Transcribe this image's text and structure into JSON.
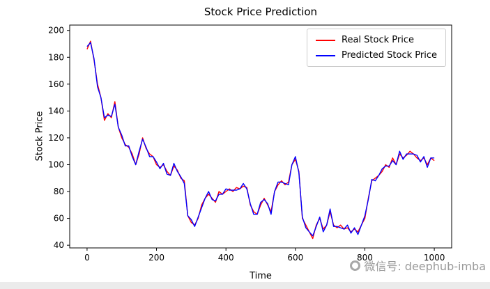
{
  "chart_data": {
    "type": "line",
    "title": "Stock Price Prediction",
    "xlabel": "Time",
    "ylabel": "Stock Price",
    "xlim": [
      -50,
      1050
    ],
    "ylim": [
      38,
      204
    ],
    "xticks": [
      0,
      200,
      400,
      600,
      800,
      1000
    ],
    "yticks": [
      40,
      60,
      80,
      100,
      120,
      140,
      160,
      180,
      200
    ],
    "grid": false,
    "legend_position": "upper right",
    "x": [
      0,
      10,
      20,
      30,
      40,
      50,
      60,
      70,
      80,
      90,
      100,
      110,
      120,
      130,
      140,
      150,
      160,
      170,
      180,
      190,
      200,
      210,
      220,
      230,
      240,
      250,
      260,
      270,
      280,
      290,
      300,
      310,
      320,
      330,
      340,
      350,
      360,
      370,
      380,
      390,
      400,
      410,
      420,
      430,
      440,
      450,
      460,
      470,
      480,
      490,
      500,
      510,
      520,
      530,
      540,
      550,
      560,
      570,
      580,
      590,
      600,
      610,
      620,
      630,
      640,
      650,
      660,
      670,
      680,
      690,
      700,
      710,
      720,
      730,
      740,
      750,
      760,
      770,
      780,
      790,
      800,
      810,
      820,
      830,
      840,
      850,
      860,
      870,
      880,
      890,
      900,
      910,
      920,
      930,
      940,
      950,
      960,
      970,
      980,
      990,
      1000
    ],
    "series": [
      {
        "name": "Real  Stock Price",
        "color": "#ff0000",
        "values": [
          186,
          192,
          178,
          160,
          150,
          133,
          138,
          135,
          147,
          128,
          120,
          115,
          113,
          108,
          100,
          108,
          120,
          112,
          108,
          106,
          100,
          98,
          100,
          95,
          92,
          99,
          96,
          90,
          88,
          62,
          57,
          55,
          60,
          70,
          75,
          78,
          75,
          72,
          80,
          78,
          80,
          82,
          80,
          83,
          82,
          84,
          83,
          70,
          65,
          63,
          70,
          75,
          70,
          65,
          80,
          85,
          88,
          85,
          87,
          100,
          104,
          95,
          60,
          55,
          50,
          45,
          55,
          60,
          52,
          55,
          65,
          55,
          53,
          55,
          52,
          53,
          50,
          52,
          50,
          55,
          60,
          75,
          88,
          90,
          92,
          95,
          100,
          98,
          105,
          100,
          108,
          105,
          107,
          110,
          108,
          105,
          103,
          105,
          100,
          105,
          103
        ]
      },
      {
        "name": "Predicted  Stock Price",
        "color": "#0000ff",
        "values": [
          188,
          191,
          179,
          158,
          150,
          135,
          137,
          136,
          145,
          128,
          122,
          114,
          114,
          106,
          100,
          110,
          119,
          113,
          106,
          106,
          102,
          97,
          101,
          93,
          92,
          101,
          95,
          91,
          86,
          62,
          59,
          54,
          61,
          68,
          75,
          80,
          74,
          73,
          78,
          78,
          82,
          81,
          81,
          81,
          82,
          86,
          82,
          71,
          63,
          63,
          72,
          74,
          71,
          63,
          80,
          87,
          87,
          86,
          85,
          100,
          106,
          94,
          61,
          53,
          50,
          47,
          54,
          61,
          50,
          55,
          67,
          54,
          54,
          53,
          52,
          55,
          49,
          53,
          48,
          55,
          62,
          74,
          89,
          88,
          92,
          97,
          99,
          99,
          103,
          100,
          110,
          104,
          108,
          108,
          108,
          107,
          102,
          106,
          98,
          105,
          105
        ]
      }
    ]
  },
  "watermark": {
    "icon": "ring-logo-icon",
    "text": "微信号: deephub-imba",
    "color": "#9a9a9a"
  }
}
